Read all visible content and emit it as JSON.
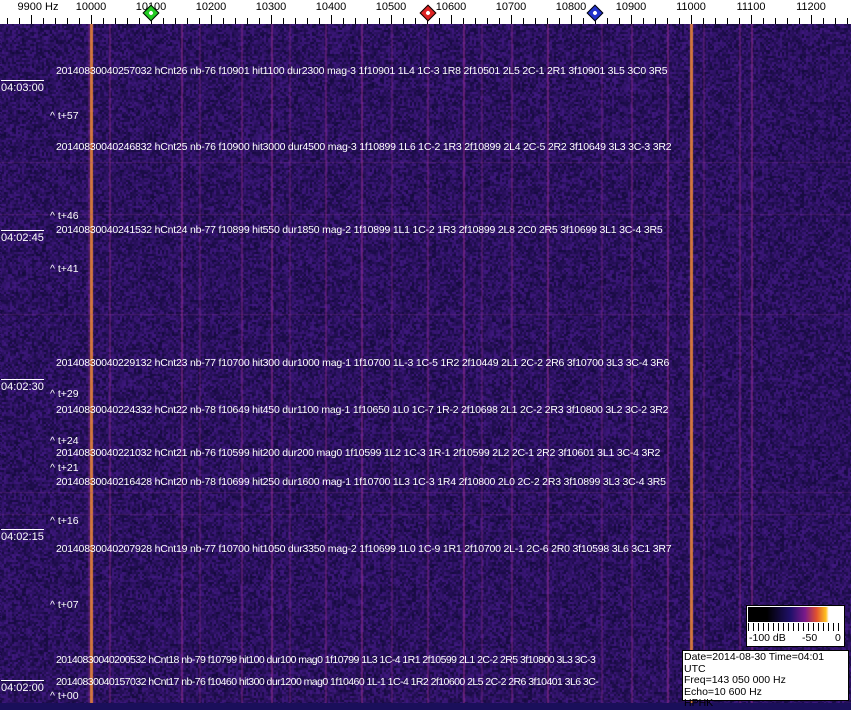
{
  "axis": {
    "unit_label": "9900 Hz",
    "ticks": [
      "10000",
      "10100",
      "10200",
      "10300",
      "10400",
      "10500",
      "10600",
      "10700",
      "10800",
      "10900",
      "11000",
      "11100",
      "11200"
    ],
    "markers": [
      {
        "name": "green",
        "freq_hz": 10100,
        "color": "#22cc22"
      },
      {
        "name": "red",
        "freq_hz": 10562,
        "color": "#dd2222"
      },
      {
        "name": "blue",
        "freq_hz": 10840,
        "color": "#2233cc"
      }
    ]
  },
  "time_labels": [
    "04:03:00",
    "04:02:45",
    "04:02:30",
    "04:02:15",
    "04:02:00"
  ],
  "t_marks": [
    "^ t+57",
    "^ t+46",
    "^ t+41",
    "^ t+29",
    "^ t+24",
    "^ t+21",
    "^ t+16",
    "^ t+07",
    "^ t+00"
  ],
  "detections": [
    "20140830040257032 hCnt26 nb-76 f10901 hit1100 dur2300 mag-3 1f10901 1L4 1C-3 1R8 2f10501 2L5 2C-1 2R1 3f10901 3L5 3C0 3R5",
    "20140830040246832 hCnt25 nb-76 f10900 hit3000 dur4500 mag-3 1f10899 1L6 1C-2 1R3 2f10899 2L4 2C-5 2R2 3f10649 3L3 3C-3 3R2",
    "20140830040241532 hCnt24 nb-77 f10899 hit550 dur1850 mag-2 1f10899 1L1 1C-2 1R3 2f10899 2L8 2C0 2R5 3f10699 3L1 3C-4 3R5",
    "20140830040229132 hCnt23 nb-77 f10700 hit300 dur1000 mag-1 1f10700 1L-3 1C-5 1R2 2f10449 2L1 2C-2 2R6 3f10700 3L3 3C-4 3R6",
    "20140830040224332 hCnt22 nb-78 f10649 hit450 dur1100 mag-1 1f10650 1L0 1C-7 1R-2 2f10698 2L1 2C-2 2R3 3f10800 3L2 3C-2 3R2",
    "20140830040221032 hCnt21 nb-76 f10599 hit200 dur200 mag0 1f10599 1L2 1C-3 1R-1 2f10599 2L2 2C-1 2R2 3f10601 3L1 3C-4 3R2",
    "20140830040216428 hCnt20 nb-78 f10699 hit250 dur1600 mag-1 1f10700 1L3 1C-3 1R4 2f10800 2L0 2C-2 2R3 3f10899 3L3 3C-4 3R5",
    "20140830040207928 hCnt19 nb-77 f10700 hit1050 dur3350 mag-2 1f10699 1L0 1C-9 1R1 2f10700 2L-1 2C-6 2R0 3f10598 3L6 3C1 3R7",
    "20140830040200532 hCnt18 nb-79 f10799 hit100 dur100 mag0 1f10799 1L3 1C-4 1R1 2f10599 2L1 2C-2 2R5 3f10800 3L3 3C-3",
    "20140830040157032 hCnt17 nb-76 f10460 hit300 dur1200 mag0 1f10460 1L-1 1C-4 1R2 2f10600 2L5 2C-2 2R6 3f10401 3L6 3C-"
  ],
  "legend": {
    "labels": [
      "-100 dB",
      "-50",
      "0"
    ]
  },
  "info": {
    "line1": "Date=2014-08-30 Time=04:01 UTC",
    "line2": "Freq=143 050 000 Hz",
    "line3": "Echo=10 600 Hz",
    "line4": "HPHK"
  },
  "colors": {
    "background": "#1a0f5a",
    "strong_carrier": "#f08a3a",
    "weak_carrier": "#a0309a"
  }
}
